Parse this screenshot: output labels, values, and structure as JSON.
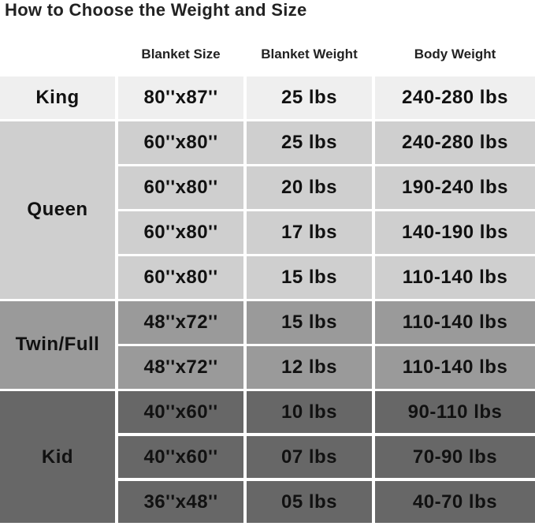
{
  "title": "How to Choose the Weight and Size",
  "headers": [
    "Blanket Size",
    "Blanket Weight",
    "Body Weight"
  ],
  "colors": {
    "King": "#efefef",
    "Queen": "#cfcfcf",
    "Twin/Full": "#9a9a9a",
    "Kid": "#676767"
  },
  "groups": [
    {
      "name": "King",
      "rows": [
        [
          "80''x87''",
          "25 lbs",
          "240-280 lbs"
        ]
      ]
    },
    {
      "name": "Queen",
      "rows": [
        [
          "60''x80''",
          "25 lbs",
          "240-280 lbs"
        ],
        [
          "60''x80''",
          "20 lbs",
          "190-240 lbs"
        ],
        [
          "60''x80''",
          "17 lbs",
          "140-190 lbs"
        ],
        [
          "60''x80''",
          "15 lbs",
          "110-140 lbs"
        ]
      ]
    },
    {
      "name": "Twin/Full",
      "rows": [
        [
          "48''x72''",
          "15 lbs",
          "110-140 lbs"
        ],
        [
          "48''x72''",
          "12 lbs",
          "110-140 lbs"
        ]
      ]
    },
    {
      "name": "Kid",
      "rows": [
        [
          "40''x60''",
          "10 lbs",
          "90-110 lbs"
        ],
        [
          "40''x60''",
          "07 lbs",
          "70-90 lbs"
        ],
        [
          "36''x48''",
          "05 lbs",
          "40-70 lbs"
        ]
      ]
    }
  ]
}
